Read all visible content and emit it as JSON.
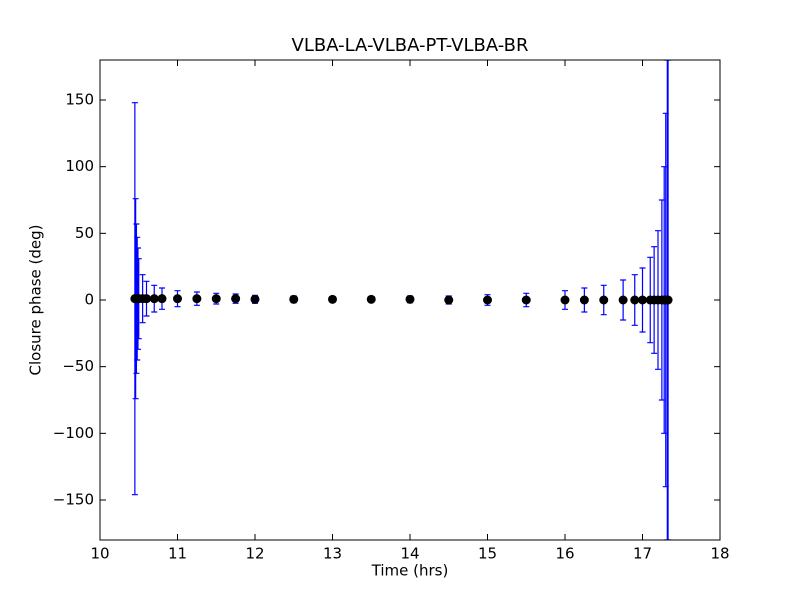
{
  "chart_data": {
    "type": "errorbar",
    "title": "VLBA-LA-VLBA-PT-VLBA-BR",
    "xlabel": "Time (hrs)",
    "ylabel": "Closure phase (deg)",
    "x": [
      10.45,
      10.46,
      10.47,
      10.48,
      10.49,
      10.5,
      10.55,
      10.6,
      10.7,
      10.8,
      11.0,
      11.25,
      11.5,
      11.75,
      12.0,
      12.5,
      13.0,
      13.5,
      14.0,
      14.5,
      15.0,
      15.5,
      16.0,
      16.25,
      16.5,
      16.75,
      16.9,
      17.0,
      17.1,
      17.15,
      17.2,
      17.25,
      17.28,
      17.3,
      17.32,
      17.33
    ],
    "values": [
      1,
      1,
      1,
      1,
      1,
      1,
      1,
      1,
      1,
      1,
      1,
      1,
      1,
      1,
      0.5,
      0.5,
      0.5,
      0.5,
      0.5,
      0,
      0,
      0,
      0,
      0,
      0,
      0,
      0,
      0,
      0,
      0,
      0,
      0,
      0,
      0,
      0,
      0
    ],
    "errors": [
      147,
      75,
      56,
      46,
      38,
      30,
      18,
      13,
      10,
      8,
      6,
      5,
      4,
      3.5,
      3,
      2.5,
      2,
      2,
      2.5,
      3,
      4,
      5,
      7,
      9,
      11,
      15,
      19,
      24,
      32,
      40,
      52,
      75,
      100,
      140,
      180,
      180
    ],
    "error_color": "#0000ff",
    "marker_color": "#000000",
    "xlim": [
      10,
      18
    ],
    "xticks": [
      10,
      11,
      12,
      13,
      14,
      15,
      16,
      17,
      18
    ],
    "ylim": [
      -180,
      180
    ],
    "yticks": [
      -150,
      -100,
      -50,
      0,
      50,
      100,
      150
    ]
  }
}
